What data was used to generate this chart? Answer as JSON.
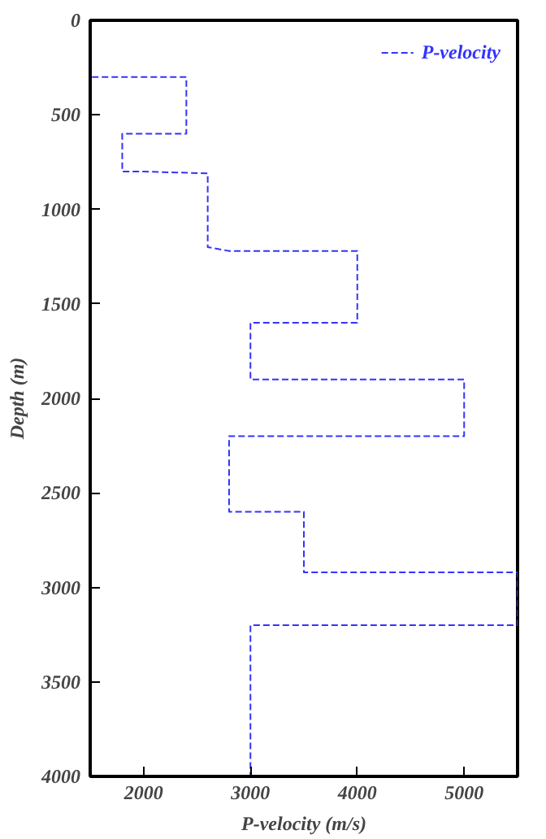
{
  "chart_data": {
    "type": "line",
    "xlabel": "P-velocity (m/s)",
    "ylabel": "Depth (m)",
    "xlim": [
      1500,
      5500
    ],
    "xticks": [
      2000,
      3000,
      4000,
      5000
    ],
    "ylim": [
      4000,
      0
    ],
    "yticks": [
      0,
      500,
      1000,
      1500,
      2000,
      2500,
      3000,
      3500,
      4000
    ],
    "series": [
      {
        "name": "P-velocity",
        "color": "#3333ff",
        "line_style": "dashed",
        "x": [
          1500,
          1500,
          1850,
          2400,
          2400,
          1800,
          1800,
          2000,
          2600,
          2600,
          2800,
          4000,
          4000,
          3000,
          3000,
          5000,
          5000,
          2800,
          2800,
          3500,
          3500,
          5500,
          5500,
          3000,
          3000
        ],
        "values": [
          0,
          300,
          300,
          300,
          600,
          600,
          800,
          800,
          810,
          1200,
          1220,
          1220,
          1600,
          1600,
          1900,
          1900,
          2200,
          2200,
          2600,
          2600,
          2920,
          2920,
          3200,
          3200,
          4000
        ]
      }
    ],
    "grid": false,
    "legend": "top right",
    "marker": "none"
  }
}
